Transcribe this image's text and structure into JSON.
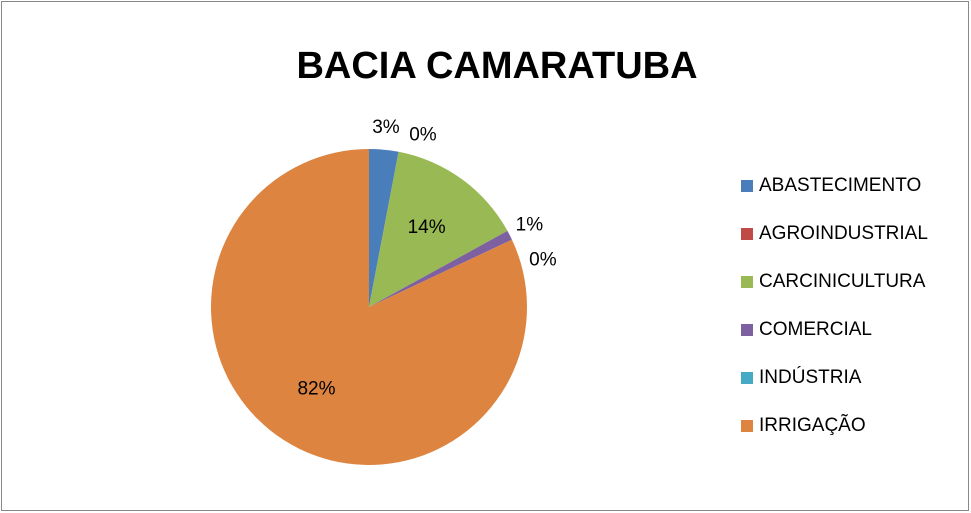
{
  "chart_data": {
    "type": "pie",
    "title": "BACIA CAMARATUBA",
    "categories": [
      "ABASTECIMENTO",
      "AGROINDUSTRIAL",
      "CARCINICULTURA",
      "COMERCIAL",
      "INDÚSTRIA",
      "IRRIGAÇÃO"
    ],
    "values": [
      3,
      0,
      14,
      1,
      0,
      82
    ],
    "value_labels": [
      "3%",
      "0%",
      "14%",
      "1%",
      "0%",
      "82%"
    ],
    "colors": [
      "#4a7ebb",
      "#be4b48",
      "#98b954",
      "#7d60a0",
      "#46aac5",
      "#dd8540"
    ],
    "legend": "right"
  }
}
